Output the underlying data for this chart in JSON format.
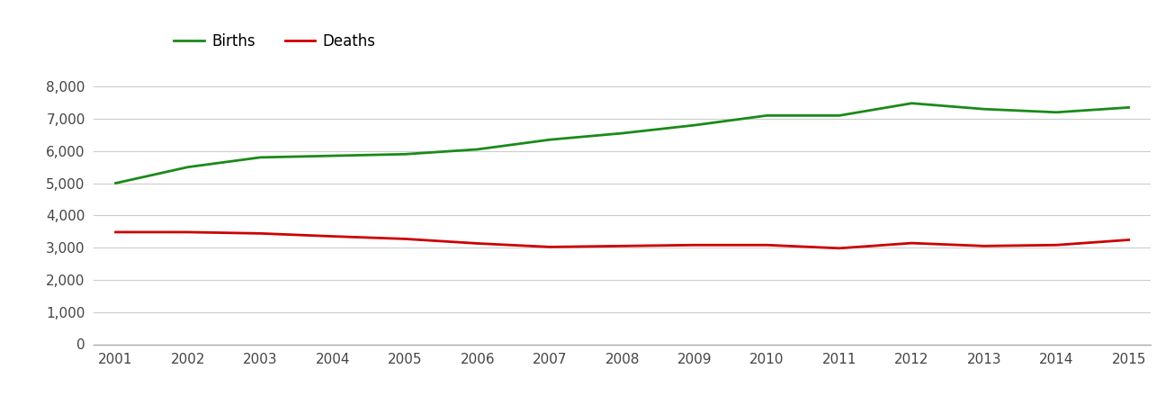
{
  "years": [
    2001,
    2002,
    2003,
    2004,
    2005,
    2006,
    2007,
    2008,
    2009,
    2010,
    2011,
    2012,
    2013,
    2014,
    2015
  ],
  "births": [
    5000,
    5500,
    5800,
    5850,
    5900,
    6050,
    6350,
    6550,
    6800,
    7100,
    7100,
    7480,
    7300,
    7200,
    7350
  ],
  "deaths": [
    3480,
    3480,
    3440,
    3350,
    3270,
    3130,
    3020,
    3050,
    3080,
    3080,
    2980,
    3140,
    3050,
    3080,
    3240
  ],
  "births_color": "#1a8a1a",
  "deaths_color": "#cc0000",
  "background_color": "#ffffff",
  "grid_color": "#cccccc",
  "ylim": [
    0,
    8800
  ],
  "yticks": [
    0,
    1000,
    2000,
    3000,
    4000,
    5000,
    6000,
    7000,
    8000
  ],
  "legend_labels": [
    "Births",
    "Deaths"
  ],
  "line_width": 2.0,
  "tick_fontsize": 11,
  "legend_fontsize": 12
}
